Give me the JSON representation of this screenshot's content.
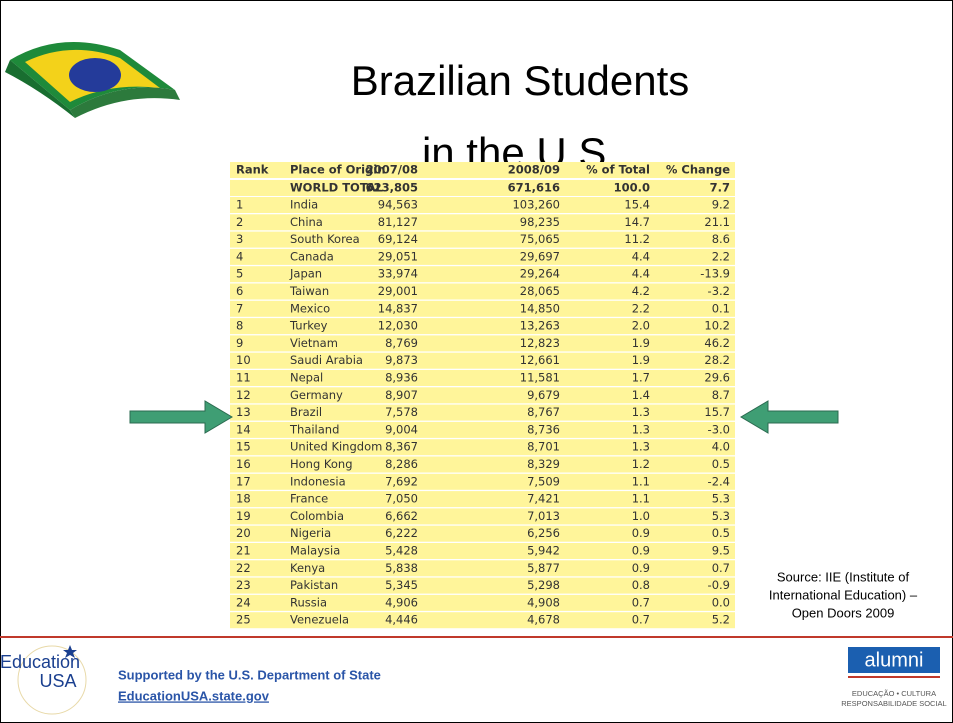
{
  "title": {
    "line1": "Brazilian Students",
    "line2": "in the U.S."
  },
  "table": {
    "header": [
      "Rank",
      "Place of Origin",
      "2007/08",
      "2008/09",
      "% of Total",
      "% Change"
    ],
    "total": [
      "WORLD TOTAL",
      "623,805",
      "671,616",
      "100.0",
      "7.7"
    ],
    "rows": [
      [
        "1",
        "India",
        "94,563",
        "103,260",
        "15.4",
        "9.2"
      ],
      [
        "2",
        "China",
        "81,127",
        "98,235",
        "14.7",
        "21.1"
      ],
      [
        "3",
        "South Korea",
        "69,124",
        "75,065",
        "11.2",
        "8.6"
      ],
      [
        "4",
        "Canada",
        "29,051",
        "29,697",
        "4.4",
        "2.2"
      ],
      [
        "5",
        "Japan",
        "33,974",
        "29,264",
        "4.4",
        "-13.9"
      ],
      [
        "6",
        "Taiwan",
        "29,001",
        "28,065",
        "4.2",
        "-3.2"
      ],
      [
        "7",
        "Mexico",
        "14,837",
        "14,850",
        "2.2",
        "0.1"
      ],
      [
        "8",
        "Turkey",
        "12,030",
        "13,263",
        "2.0",
        "10.2"
      ],
      [
        "9",
        "Vietnam",
        "8,769",
        "12,823",
        "1.9",
        "46.2"
      ],
      [
        "10",
        "Saudi Arabia",
        "9,873",
        "12,661",
        "1.9",
        "28.2"
      ],
      [
        "11",
        "Nepal",
        "8,936",
        "11,581",
        "1.7",
        "29.6"
      ],
      [
        "12",
        "Germany",
        "8,907",
        "9,679",
        "1.4",
        "8.7"
      ],
      [
        "13",
        "Brazil",
        "7,578",
        "8,767",
        "1.3",
        "15.7"
      ],
      [
        "14",
        "Thailand",
        "9,004",
        "8,736",
        "1.3",
        "-3.0"
      ],
      [
        "15",
        "United Kingdom",
        "8,367",
        "8,701",
        "1.3",
        "4.0"
      ],
      [
        "16",
        "Hong Kong",
        "8,286",
        "8,329",
        "1.2",
        "0.5"
      ],
      [
        "17",
        "Indonesia",
        "7,692",
        "7,509",
        "1.1",
        "-2.4"
      ],
      [
        "18",
        "France",
        "7,050",
        "7,421",
        "1.1",
        "5.3"
      ],
      [
        "19",
        "Colombia",
        "6,662",
        "7,013",
        "1.0",
        "5.3"
      ],
      [
        "20",
        "Nigeria",
        "6,222",
        "6,256",
        "0.9",
        "0.5"
      ],
      [
        "21",
        "Malaysia",
        "5,428",
        "5,942",
        "0.9",
        "9.5"
      ],
      [
        "22",
        "Kenya",
        "5,838",
        "5,877",
        "0.9",
        "0.7"
      ],
      [
        "23",
        "Pakistan",
        "5,345",
        "5,298",
        "0.8",
        "-0.9"
      ],
      [
        "24",
        "Russia",
        "4,906",
        "4,908",
        "0.7",
        "0.0"
      ],
      [
        "25",
        "Venezuela",
        "4,446",
        "4,678",
        "0.7",
        "5.2"
      ]
    ]
  },
  "source": [
    "Source: IIE (Institute of",
    "International Education) –",
    "Open Doors 2009"
  ],
  "footer": {
    "logo_left": [
      "Education",
      "USA"
    ],
    "supported": "Supported by the U.S. Department of State",
    "link": "EducationUSA.state.gov",
    "logo_right": [
      "alumni",
      "EDUCAÇÃO • CULTURA",
      "RESPONSABILIDADE SOCIAL"
    ]
  }
}
